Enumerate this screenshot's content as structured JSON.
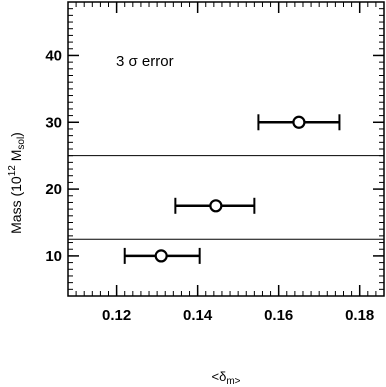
{
  "chart_data": {
    "type": "scatter",
    "title": "",
    "annotation_text": "3 σ error",
    "xlabel": {
      "main": "<δ",
      "sub": "m>"
    },
    "ylabel": {
      "main": "Mass (10",
      "sup": "12",
      "mid": " M",
      "sub": "sol",
      "end": ")"
    },
    "xlim": [
      0.108,
      0.186
    ],
    "ylim": [
      4,
      48
    ],
    "xticks": [
      {
        "value": 0.12,
        "label": "0.12"
      },
      {
        "value": 0.14,
        "label": "0.14"
      },
      {
        "value": 0.16,
        "label": "0.16"
      },
      {
        "value": 0.18,
        "label": "0.18"
      }
    ],
    "yticks": [
      {
        "value": 10,
        "label": "10"
      },
      {
        "value": 20,
        "label": "20"
      },
      {
        "value": 30,
        "label": "30"
      },
      {
        "value": 40,
        "label": "40"
      }
    ],
    "points": [
      {
        "x": 0.131,
        "y": 10.0,
        "xerr": [
          0.122,
          0.1405
        ]
      },
      {
        "x": 0.1445,
        "y": 17.5,
        "xerr": [
          0.1345,
          0.154
        ]
      },
      {
        "x": 0.165,
        "y": 30.0,
        "xerr": [
          0.155,
          0.175
        ]
      }
    ],
    "horizontal_lines": [
      12.5,
      25.0
    ],
    "grid": false,
    "legend": "none"
  }
}
